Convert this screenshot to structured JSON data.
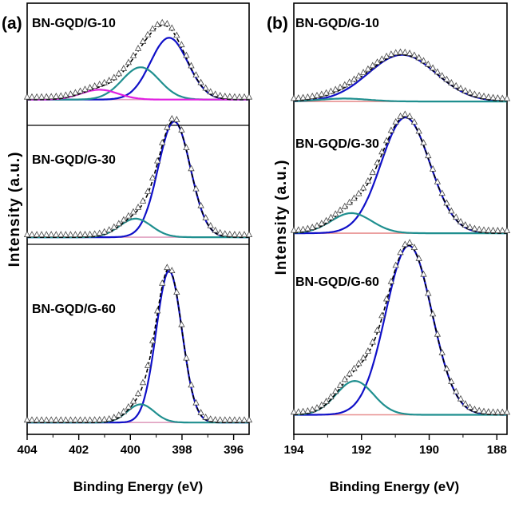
{
  "chart_data": [
    {
      "panel": "(a)",
      "type": "line",
      "xlabel": "Binding Energy (eV)",
      "ylabel": "Intensity (a.u.)",
      "xlim": [
        404,
        395.4
      ],
      "xticks": [
        404,
        402,
        400,
        398,
        396
      ],
      "colors": {
        "data": "#000000",
        "fit": "#1010c8",
        "component2": "#1f8f8f",
        "component3": "#e01ee0",
        "baseline": "#e0a0c0"
      },
      "series": [
        {
          "label": "BN-GQD/G-10",
          "baseline": 0.06,
          "peaks": [
            {
              "center": 398.5,
              "height": 0.88,
              "width": 0.72,
              "color": "#1010c8"
            },
            {
              "center": 399.6,
              "height": 0.46,
              "width": 0.72,
              "color": "#1f8f8f"
            },
            {
              "center": 401.2,
              "height": 0.14,
              "width": 0.72,
              "color": "#e01ee0"
            }
          ]
        },
        {
          "label": "BN-GQD/G-30",
          "baseline": 0.02,
          "peaks": [
            {
              "center": 398.3,
              "height": 1.0,
              "width": 0.62,
              "color": "#1010c8"
            },
            {
              "center": 399.8,
              "height": 0.16,
              "width": 0.62,
              "color": "#1f8f8f"
            }
          ]
        },
        {
          "label": "BN-GQD/G-60",
          "baseline": 0.02,
          "peaks": [
            {
              "center": 398.5,
              "height": 1.0,
              "width": 0.5,
              "color": "#1010c8"
            },
            {
              "center": 399.6,
              "height": 0.12,
              "width": 0.52,
              "color": "#1f8f8f"
            }
          ]
        }
      ]
    },
    {
      "panel": "(b)",
      "type": "line",
      "xlabel": "Binding Energy (eV)",
      "ylabel": "Intensity (a.u.)",
      "xlim": [
        194,
        187.7
      ],
      "xticks": [
        194,
        192,
        190,
        188
      ],
      "colors": {
        "data": "#000000",
        "fit": "#1010c8",
        "component2": "#1f8f8f",
        "baseline": "#e89090"
      },
      "series": [
        {
          "label": "BN-GQD/G-10",
          "baseline": 0.04,
          "peaks": [
            {
              "center": 190.8,
              "height": 0.8,
              "width": 1.0,
              "color": "#1010c8"
            },
            {
              "center": 192.5,
              "height": 0.05,
              "width": 0.7,
              "color": "#1f8f8f"
            }
          ]
        },
        {
          "label": "BN-GQD/G-30",
          "baseline": 0.04,
          "peaks": [
            {
              "center": 190.7,
              "height": 0.98,
              "width": 0.72,
              "color": "#1010c8"
            },
            {
              "center": 192.3,
              "height": 0.17,
              "width": 0.6,
              "color": "#1f8f8f"
            }
          ]
        },
        {
          "label": "BN-GQD/G-60",
          "baseline": 0.04,
          "peaks": [
            {
              "center": 190.6,
              "height": 1.0,
              "width": 0.68,
              "color": "#1010c8"
            },
            {
              "center": 192.2,
              "height": 0.2,
              "width": 0.55,
              "color": "#1f8f8f"
            }
          ]
        }
      ]
    }
  ]
}
